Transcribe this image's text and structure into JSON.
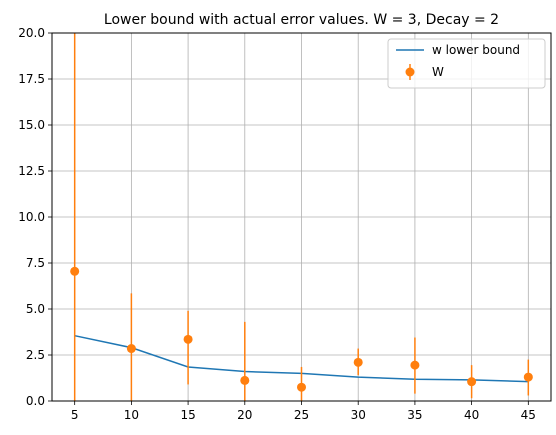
{
  "chart_data": {
    "type": "line",
    "title": "Lower bound with actual error values. W = 3, Decay = 2",
    "xlabel": "",
    "ylabel": "",
    "xlim": [
      3.0,
      47.0
    ],
    "ylim": [
      0,
      20
    ],
    "x_ticks": [
      "5",
      "10",
      "15",
      "20",
      "25",
      "30",
      "35",
      "40",
      "45"
    ],
    "y_ticks": [
      "0.0",
      "2.5",
      "5.0",
      "7.5",
      "10.0",
      "12.5",
      "15.0",
      "17.5",
      "20.0"
    ],
    "grid": true,
    "legend_position": "top-right",
    "series": [
      {
        "name": "w lower bound",
        "kind": "line",
        "color": "#1f77b4",
        "x": [
          5,
          10,
          15,
          20,
          25,
          30,
          35,
          40,
          45
        ],
        "y": [
          3.55,
          2.9,
          1.85,
          1.6,
          1.5,
          1.3,
          1.18,
          1.15,
          1.05
        ]
      },
      {
        "name": "W",
        "kind": "errorbar",
        "color": "#ff7f0e",
        "x": [
          5,
          10,
          15,
          20,
          25,
          30,
          35,
          40,
          45
        ],
        "y": [
          7.05,
          2.85,
          3.35,
          1.12,
          0.75,
          2.1,
          1.95,
          1.05,
          1.3
        ],
        "y_low": [
          0.0,
          0.0,
          0.9,
          0.0,
          0.0,
          1.4,
          0.4,
          0.15,
          0.3
        ],
        "y_high": [
          20.0,
          5.85,
          4.9,
          4.3,
          1.85,
          2.85,
          3.45,
          1.95,
          2.25
        ]
      }
    ]
  }
}
